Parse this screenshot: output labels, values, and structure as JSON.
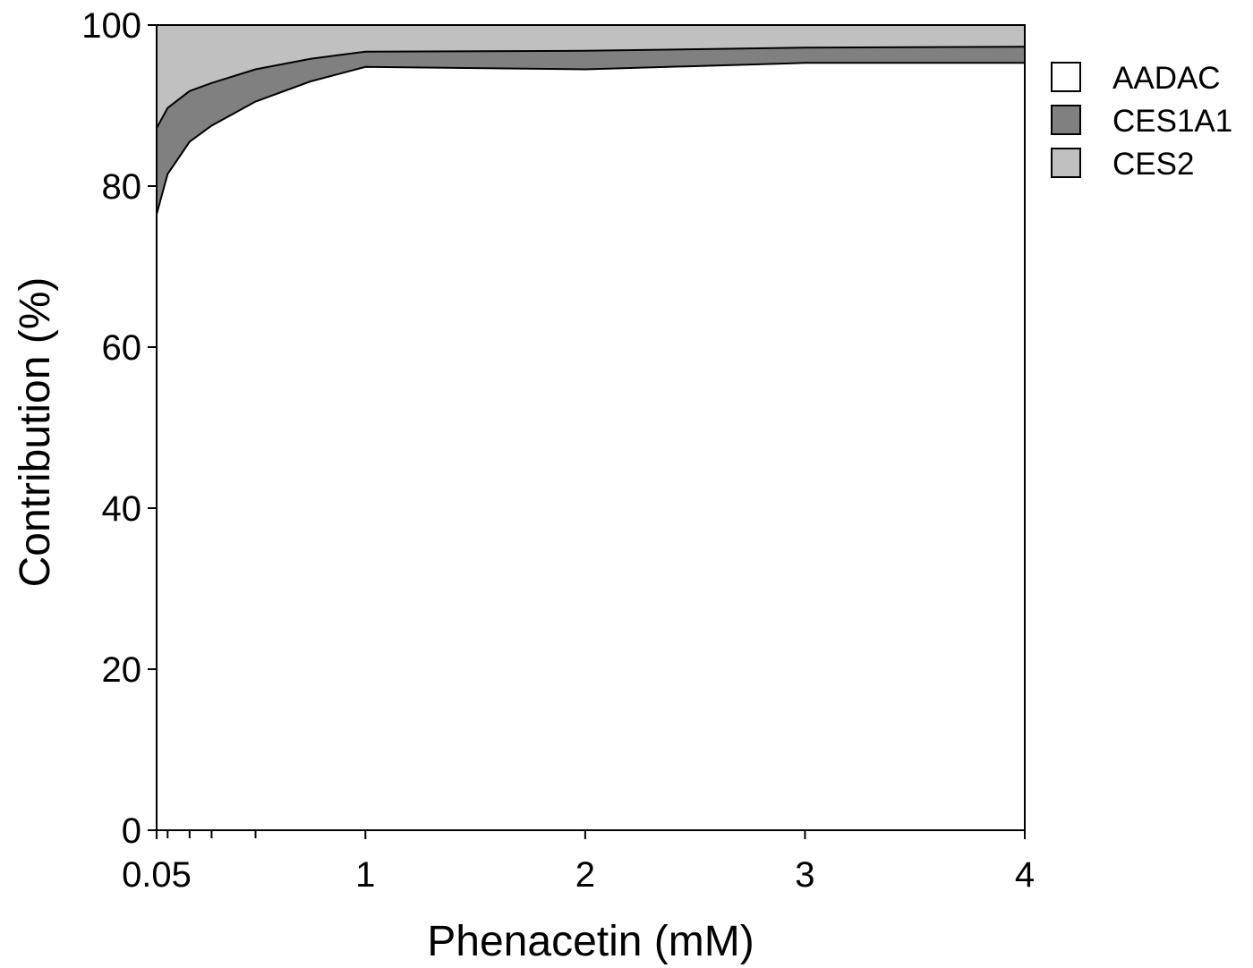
{
  "chart_data": {
    "type": "area",
    "stacked": true,
    "xlabel": "Phenacetin (mM)",
    "ylabel": "Contribution (%)",
    "xlim": [
      0.05,
      4
    ],
    "ylim": [
      0,
      100
    ],
    "x_ticks": [
      0.05,
      1,
      2,
      3,
      4
    ],
    "x_tick_labels": [
      "0.05",
      "1",
      "2",
      "3",
      "4"
    ],
    "x_minor_ticks": [
      0.1,
      0.2,
      0.3,
      0.5
    ],
    "y_ticks": [
      0,
      20,
      40,
      60,
      80,
      100
    ],
    "y_tick_labels": [
      "0",
      "20",
      "40",
      "60",
      "80",
      "100"
    ],
    "grid": false,
    "legend_position": "top-right",
    "x": [
      0.05,
      0.1,
      0.2,
      0.3,
      0.5,
      0.75,
      1,
      2,
      3,
      4
    ],
    "series": [
      {
        "name": "AADAC",
        "color": "#ffffff",
        "values": [
          76.5,
          81.5,
          85.5,
          87.5,
          90.5,
          93,
          94.8,
          94.5,
          95.3,
          95.3
        ]
      },
      {
        "name": "CES1A1",
        "color": "#808080",
        "values": [
          10.7,
          8.2,
          6.3,
          5.3,
          4,
          2.8,
          1.9,
          2.3,
          1.9,
          2.0
        ]
      },
      {
        "name": "CES2",
        "color": "#c0c0c0",
        "values": [
          12.8,
          10.3,
          8.2,
          7.2,
          5.5,
          4.2,
          3.3,
          3.2,
          2.8,
          2.7
        ]
      }
    ]
  }
}
